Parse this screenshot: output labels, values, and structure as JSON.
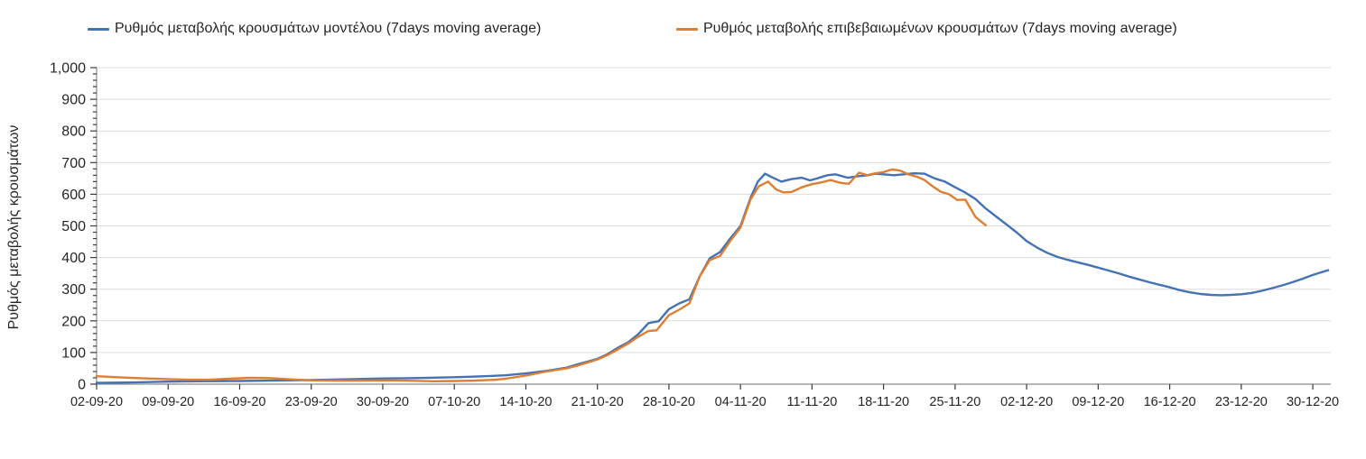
{
  "chart_data": {
    "type": "line",
    "title": "",
    "ylabel": "Ρυθμός μεταβολής κρουσμάτων",
    "xlabel": "",
    "grid": "horizontal",
    "legend_position": "top",
    "y_axis": {
      "min": 0,
      "max": 1000,
      "major_step": 100,
      "minor_step": 20,
      "tick_labels": [
        "0",
        "100",
        "200",
        "300",
        "400",
        "500",
        "600",
        "700",
        "800",
        "900",
        "1,000"
      ]
    },
    "x_axis": {
      "unit": "date",
      "tick_interval_days": 7,
      "tick_labels": [
        "02-09-20",
        "09-09-20",
        "16-09-20",
        "23-09-20",
        "30-09-20",
        "07-10-20",
        "14-10-20",
        "21-10-20",
        "28-10-20",
        "04-11-20",
        "11-11-20",
        "18-11-20",
        "25-11-20",
        "02-12-20",
        "09-12-20",
        "16-12-20",
        "23-12-20",
        "30-12-20"
      ]
    },
    "series": [
      {
        "name": "Ρυθμός μεταβολής κρουσμάτων μοντέλου (7days moving average)",
        "color": "#4472B4",
        "points": [
          [
            0,
            4
          ],
          [
            3,
            5
          ],
          [
            7,
            8
          ],
          [
            10,
            9
          ],
          [
            14,
            10
          ],
          [
            17,
            11
          ],
          [
            21,
            13
          ],
          [
            24,
            15
          ],
          [
            28,
            18
          ],
          [
            31,
            19
          ],
          [
            35,
            22
          ],
          [
            38,
            25
          ],
          [
            40,
            28
          ],
          [
            42,
            34
          ],
          [
            44,
            42
          ],
          [
            46,
            52
          ],
          [
            47,
            62
          ],
          [
            48,
            71
          ],
          [
            49,
            80
          ],
          [
            50,
            95
          ],
          [
            51,
            115
          ],
          [
            52,
            132
          ],
          [
            53,
            158
          ],
          [
            54,
            193
          ],
          [
            55,
            199
          ],
          [
            56,
            237
          ],
          [
            57,
            255
          ],
          [
            58,
            268
          ],
          [
            59,
            340
          ],
          [
            60,
            398
          ],
          [
            61,
            417
          ],
          [
            62,
            460
          ],
          [
            63,
            500
          ],
          [
            64,
            590
          ],
          [
            64.7,
            640
          ],
          [
            65.4,
            665
          ],
          [
            66,
            655
          ],
          [
            67,
            640
          ],
          [
            68,
            648
          ],
          [
            69,
            652
          ],
          [
            69.8,
            644
          ],
          [
            70.5,
            650
          ],
          [
            71.5,
            660
          ],
          [
            72.3,
            663
          ],
          [
            73.5,
            652
          ],
          [
            74.5,
            657
          ],
          [
            75.5,
            660
          ],
          [
            76.2,
            665
          ],
          [
            77,
            663
          ],
          [
            78,
            660
          ],
          [
            79,
            663
          ],
          [
            80,
            666
          ],
          [
            81,
            665
          ],
          [
            82,
            650
          ],
          [
            83,
            640
          ],
          [
            84,
            622
          ],
          [
            85,
            605
          ],
          [
            86,
            585
          ],
          [
            87,
            555
          ],
          [
            88,
            530
          ],
          [
            89,
            505
          ],
          [
            90,
            480
          ],
          [
            91,
            452
          ],
          [
            92,
            432
          ],
          [
            93,
            415
          ],
          [
            94,
            402
          ],
          [
            95,
            393
          ],
          [
            96,
            385
          ],
          [
            97,
            377
          ],
          [
            98,
            368
          ],
          [
            99,
            359
          ],
          [
            100,
            350
          ],
          [
            101,
            340
          ],
          [
            102,
            331
          ],
          [
            103,
            322
          ],
          [
            104,
            314
          ],
          [
            105,
            306
          ],
          [
            106,
            297
          ],
          [
            107,
            290
          ],
          [
            108,
            285
          ],
          [
            109,
            282
          ],
          [
            110,
            281
          ],
          [
            111,
            282
          ],
          [
            112,
            284
          ],
          [
            113,
            288
          ],
          [
            114,
            295
          ],
          [
            115,
            303
          ],
          [
            116,
            312
          ],
          [
            117,
            322
          ],
          [
            118,
            333
          ],
          [
            119,
            345
          ],
          [
            120.5,
            360
          ]
        ]
      },
      {
        "name": "Ρυθμός μεταβολής επιβεβαιωμένων κρουσμάτων (7days moving average)",
        "color": "#DD7E32",
        "points": [
          [
            0,
            25
          ],
          [
            2,
            22
          ],
          [
            4,
            19
          ],
          [
            7,
            16
          ],
          [
            9,
            14
          ],
          [
            11,
            14
          ],
          [
            13,
            17
          ],
          [
            15,
            20
          ],
          [
            17,
            19
          ],
          [
            19,
            15
          ],
          [
            21,
            12
          ],
          [
            24,
            11
          ],
          [
            26,
            11
          ],
          [
            28,
            12
          ],
          [
            30,
            11
          ],
          [
            33,
            9
          ],
          [
            35,
            10
          ],
          [
            37,
            11
          ],
          [
            39,
            14
          ],
          [
            40,
            17
          ],
          [
            42,
            27
          ],
          [
            44,
            40
          ],
          [
            46,
            50
          ],
          [
            47,
            58
          ],
          [
            48,
            68
          ],
          [
            49,
            78
          ],
          [
            50,
            92
          ],
          [
            51,
            110
          ],
          [
            52,
            128
          ],
          [
            53,
            150
          ],
          [
            54,
            168
          ],
          [
            54.8,
            170
          ],
          [
            56,
            218
          ],
          [
            57,
            235
          ],
          [
            58,
            255
          ],
          [
            59,
            340
          ],
          [
            60,
            392
          ],
          [
            61,
            405
          ],
          [
            62,
            452
          ],
          [
            63,
            495
          ],
          [
            64,
            585
          ],
          [
            64.8,
            625
          ],
          [
            65.7,
            640
          ],
          [
            66.5,
            615
          ],
          [
            67.2,
            606
          ],
          [
            68,
            607
          ],
          [
            69,
            622
          ],
          [
            70,
            632
          ],
          [
            71,
            638
          ],
          [
            71.8,
            645
          ],
          [
            72.8,
            636
          ],
          [
            73.6,
            633
          ],
          [
            74.6,
            668
          ],
          [
            75.4,
            660
          ],
          [
            76.2,
            666
          ],
          [
            77,
            670
          ],
          [
            77.8,
            678
          ],
          [
            78.6,
            675
          ],
          [
            79.5,
            662
          ],
          [
            80.3,
            655
          ],
          [
            81,
            645
          ],
          [
            81.8,
            625
          ],
          [
            82.6,
            608
          ],
          [
            83.4,
            600
          ],
          [
            84.2,
            582
          ],
          [
            85,
            583
          ],
          [
            86,
            528
          ],
          [
            87,
            502
          ]
        ]
      }
    ],
    "style": {
      "gridline_color": "#dcdcdc",
      "axis_color": "#8c8c8c",
      "tick_color": "#3a3a3a",
      "tick_label_color": "#262626",
      "background": "#ffffff"
    }
  }
}
